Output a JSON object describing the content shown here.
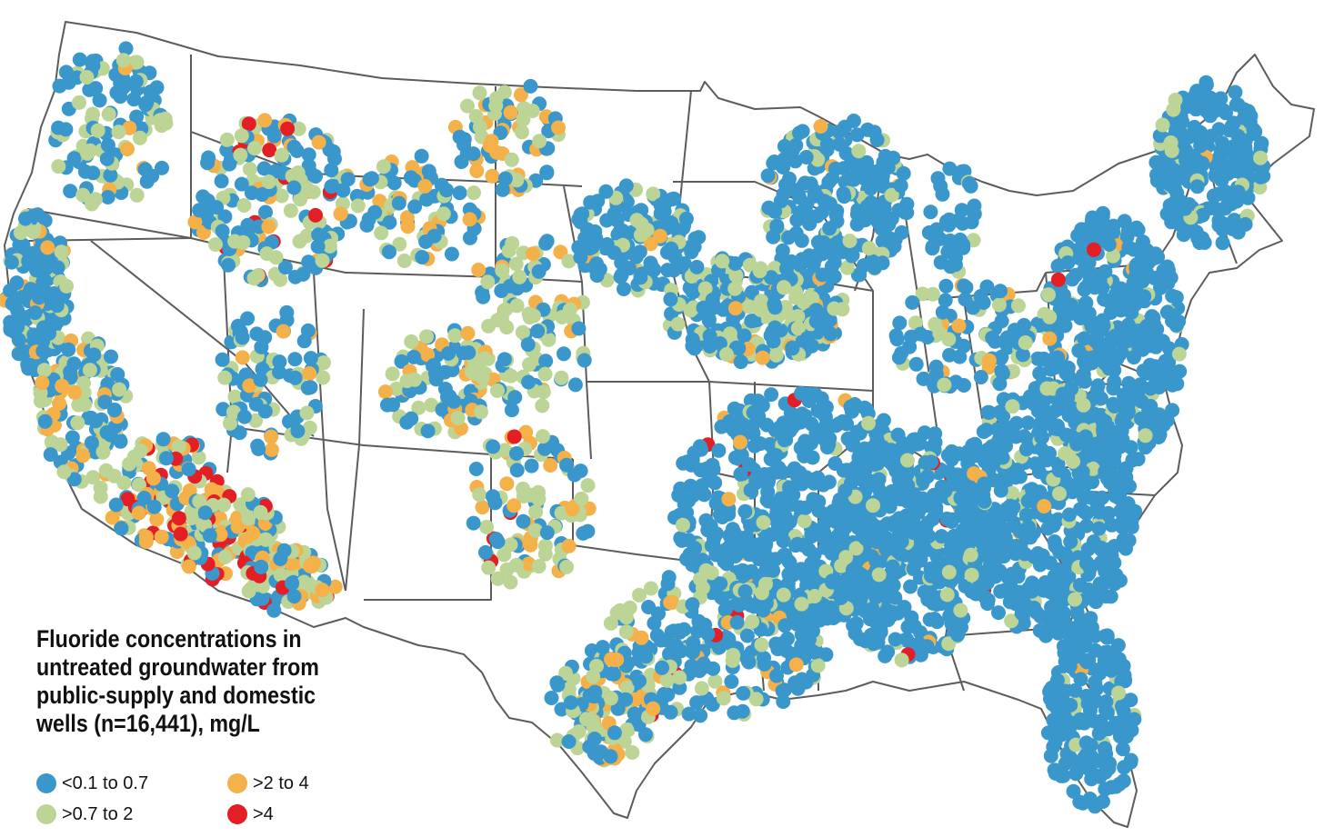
{
  "legend": {
    "title_lines": [
      "Fluoride concentrations in",
      "untreated groundwater from",
      "public-supply and domestic",
      "wells (n=16,441), mg/L"
    ],
    "categories": [
      {
        "label": "<0.1 to 0.7",
        "color": "#3a97cc"
      },
      {
        "label": ">2 to 4",
        "color": "#f4b14a"
      },
      {
        "label": ">0.7 to 2",
        "color": "#bcd597"
      },
      {
        "label": ">4",
        "color": "#e31e24"
      }
    ]
  },
  "map": {
    "region": "Conterminous United States",
    "well_count": "16,441",
    "units": "mg/L",
    "dominant_pattern": {
      "<0.1 to 0.7": "East, Midwest, Southeast, Pacific Northwest",
      ">0.7 to 2": "Great Plains, Interior West",
      ">2 to 4": "Southwest, Texas, Idaho",
      ">4": "Arizona/southern Nevada, Idaho, scattered Southeast"
    }
  }
}
